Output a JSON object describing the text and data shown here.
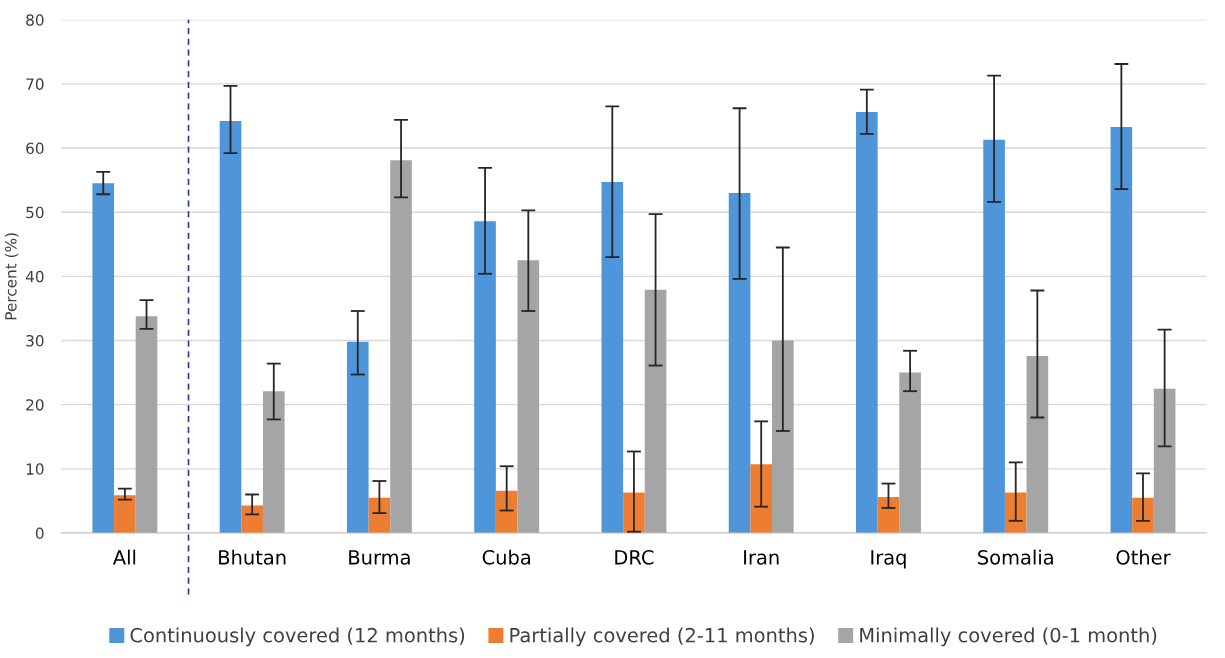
{
  "chart_data": {
    "type": "bar",
    "ylabel": "Percent (%)",
    "categories": [
      "All",
      "Bhutan",
      "Burma",
      "Cuba",
      "DRC",
      "Iran",
      "Iraq",
      "Somalia",
      "Other"
    ],
    "series": [
      {
        "name": "Continuously covered (12 months)",
        "color": "#4e95d9",
        "values": [
          54.5,
          64.2,
          29.8,
          48.6,
          54.7,
          53.0,
          65.6,
          61.3,
          63.3
        ],
        "errors": [
          [
            52.8,
            56.3
          ],
          [
            59.2,
            69.7
          ],
          [
            24.7,
            34.6
          ],
          [
            40.4,
            56.9
          ],
          [
            43.0,
            66.5
          ],
          [
            39.6,
            66.2
          ],
          [
            62.2,
            69.1
          ],
          [
            51.6,
            71.3
          ],
          [
            53.6,
            73.1
          ]
        ]
      },
      {
        "name": "Partially covered (2-11 months)",
        "color": "#ed7d31",
        "values": [
          5.9,
          4.3,
          5.5,
          6.6,
          6.3,
          10.7,
          5.6,
          6.3,
          5.5
        ],
        "errors": [
          [
            5.2,
            6.9
          ],
          [
            2.9,
            6.0
          ],
          [
            3.1,
            8.1
          ],
          [
            3.5,
            10.4
          ],
          [
            0.2,
            12.7
          ],
          [
            4.1,
            17.4
          ],
          [
            3.9,
            7.7
          ],
          [
            1.9,
            11.0
          ],
          [
            1.9,
            9.3
          ]
        ]
      },
      {
        "name": "Minimally covered (0-1 month)",
        "color": "#a5a5a5",
        "values": [
          33.8,
          22.1,
          58.1,
          42.5,
          37.9,
          30.0,
          25.0,
          27.6,
          22.5
        ],
        "errors": [
          [
            31.8,
            36.3
          ],
          [
            17.7,
            26.4
          ],
          [
            52.3,
            64.4
          ],
          [
            34.6,
            50.3
          ],
          [
            26.1,
            49.7
          ],
          [
            15.9,
            44.5
          ],
          [
            22.1,
            28.4
          ],
          [
            18.0,
            37.8
          ],
          [
            13.5,
            31.7
          ]
        ]
      }
    ],
    "ylim": [
      0,
      80
    ],
    "yticks": [
      0,
      10,
      20,
      30,
      40,
      50,
      60,
      70,
      80
    ],
    "grid": "y",
    "legend": "bottom"
  }
}
